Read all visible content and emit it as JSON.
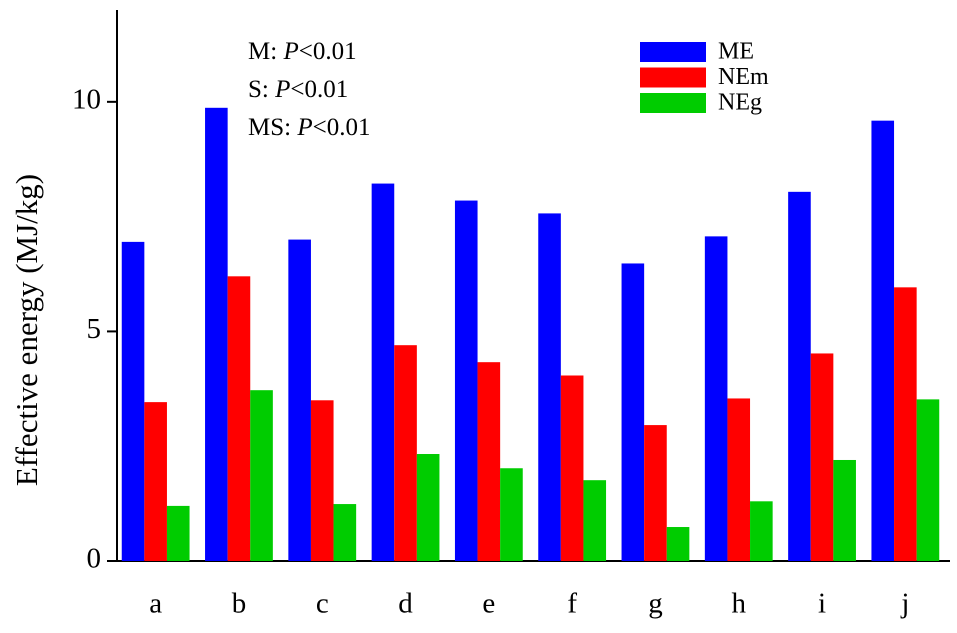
{
  "chart_data": {
    "type": "bar",
    "y_label": "Effective energy (MJ/kg)",
    "categories": [
      "a",
      "b",
      "c",
      "d",
      "e",
      "f",
      "g",
      "h",
      "i",
      "j"
    ],
    "series": [
      {
        "name": "ME",
        "color": "#0000ff",
        "values": [
          6.95,
          9.87,
          7.0,
          8.22,
          7.85,
          7.57,
          6.48,
          7.07,
          8.04,
          9.59
        ]
      },
      {
        "name": "NEm",
        "color": "#ff0000",
        "values": [
          3.46,
          6.2,
          3.5,
          4.7,
          4.33,
          4.04,
          2.96,
          3.54,
          4.52,
          5.96
        ]
      },
      {
        "name": "NEg",
        "color": "#00cc00",
        "values": [
          1.2,
          3.72,
          1.24,
          2.33,
          2.02,
          1.76,
          0.74,
          1.3,
          2.2,
          3.52
        ]
      }
    ],
    "annotations": [
      {
        "prefix": "M: ",
        "italic": "P",
        "suffix": "<0.01"
      },
      {
        "prefix": "S: ",
        "italic": "P",
        "suffix": "<0.01"
      },
      {
        "prefix": "MS: ",
        "italic": "P",
        "suffix": "<0.01"
      }
    ],
    "ylim": [
      0,
      12
    ],
    "yticks": [
      0,
      5,
      10
    ],
    "grid": false,
    "legend": "upper right"
  }
}
